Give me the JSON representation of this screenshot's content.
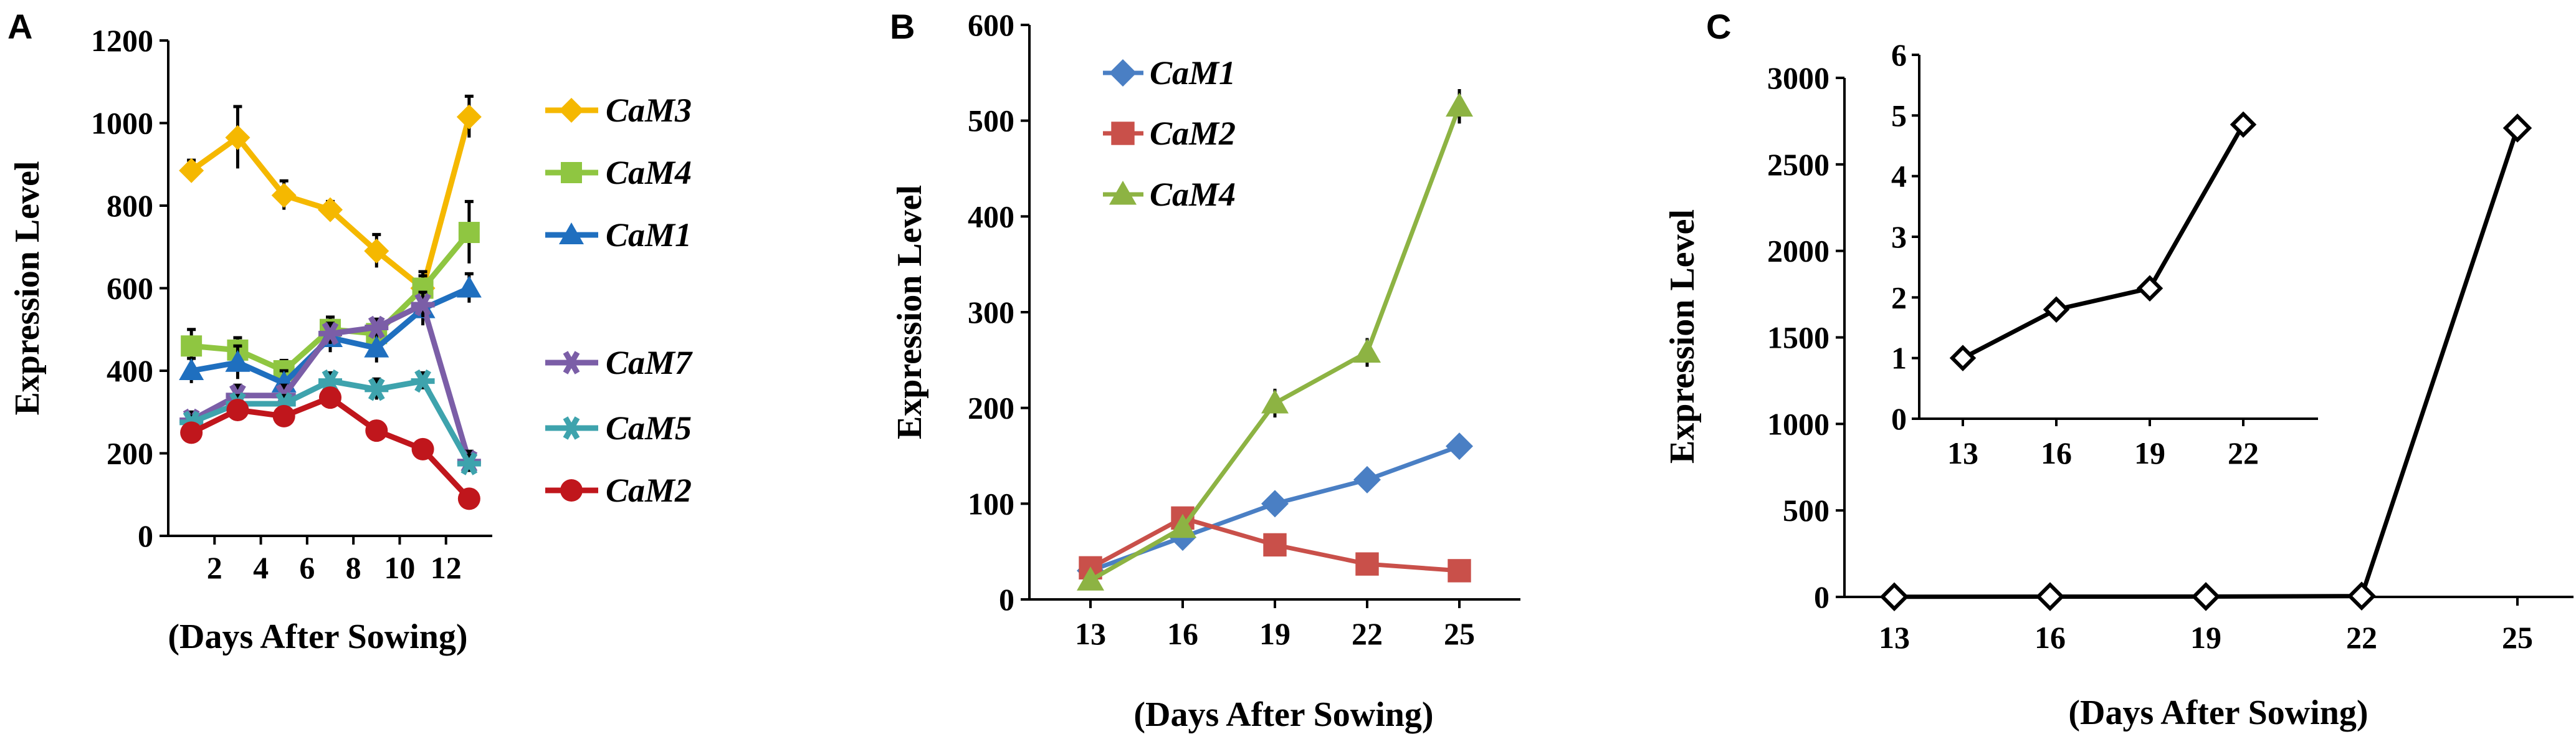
{
  "panels": {
    "A": {
      "letter": "A"
    },
    "B": {
      "letter": "B"
    },
    "C": {
      "letter": "C"
    }
  },
  "chart_data": [
    {
      "panel": "A",
      "type": "line",
      "xlabel": "(Days After Sowing)",
      "ylabel": "Expression Level",
      "xlim": [
        0,
        14
      ],
      "ylim": [
        0,
        1200
      ],
      "xticks": [
        2,
        4,
        6,
        8,
        10,
        12
      ],
      "yticks": [
        0,
        200,
        400,
        600,
        800,
        1000,
        1200
      ],
      "x": [
        1,
        3,
        5,
        7,
        9,
        11,
        13
      ],
      "legend_position": "right",
      "series": [
        {
          "name": "CaM3",
          "color": "#f5b800",
          "marker": "diamond",
          "values": [
            885,
            965,
            825,
            790,
            690,
            600,
            1015
          ],
          "errors": [
            25,
            75,
            35,
            20,
            40,
            30,
            50
          ]
        },
        {
          "name": "CaM4",
          "color": "#8fc641",
          "marker": "square",
          "values": [
            460,
            450,
            400,
            500,
            490,
            600,
            735
          ],
          "errors": [
            40,
            30,
            25,
            30,
            30,
            40,
            75
          ]
        },
        {
          "name": "CaM1",
          "color": "#1f6fbf",
          "marker": "triangle",
          "values": [
            400,
            420,
            370,
            480,
            455,
            550,
            600
          ],
          "errors": [
            30,
            40,
            30,
            35,
            35,
            40,
            35
          ]
        },
        {
          "name": "CaM7",
          "color": "#7b5ea7",
          "marker": "star",
          "values": [
            280,
            340,
            340,
            490,
            505,
            560,
            180
          ],
          "errors": [
            20,
            25,
            25,
            25,
            20,
            30,
            25
          ]
        },
        {
          "name": "CaM5",
          "color": "#3ea3ad",
          "marker": "star",
          "values": [
            275,
            320,
            320,
            375,
            355,
            375,
            175
          ],
          "errors": [
            15,
            20,
            20,
            20,
            25,
            20,
            20
          ]
        },
        {
          "name": "CaM2",
          "color": "#c0161c",
          "marker": "circle",
          "values": [
            250,
            305,
            290,
            335,
            255,
            210,
            90
          ],
          "errors": [
            20,
            20,
            20,
            20,
            20,
            15,
            15
          ]
        }
      ]
    },
    {
      "panel": "B",
      "type": "line",
      "xlabel": "(Days After Sowing)",
      "ylabel": "Expression Level",
      "categories": [
        "13",
        "16",
        "19",
        "22",
        "25"
      ],
      "ylim": [
        0,
        600
      ],
      "yticks": [
        0,
        100,
        200,
        300,
        400,
        500,
        600
      ],
      "legend_position": "top-left",
      "series": [
        {
          "name": "CaM1",
          "color": "#4a7fc4",
          "marker": "diamond",
          "values": [
            30,
            65,
            100,
            125,
            160
          ],
          "errors": [
            8,
            10,
            12,
            12,
            12
          ]
        },
        {
          "name": "CaM2",
          "color": "#c9504a",
          "marker": "square",
          "values": [
            33,
            85,
            57,
            37,
            30
          ],
          "errors": [
            8,
            10,
            12,
            10,
            10
          ]
        },
        {
          "name": "CaM4",
          "color": "#8db343",
          "marker": "triangle",
          "values": [
            20,
            75,
            205,
            258,
            515
          ],
          "errors": [
            8,
            10,
            15,
            15,
            18
          ]
        }
      ]
    },
    {
      "panel": "C",
      "type": "line",
      "xlabel": "(Days After Sowing)",
      "ylabel": "Expression Level",
      "categories": [
        "13",
        "16",
        "19",
        "22",
        "25"
      ],
      "ylim": [
        0,
        3000
      ],
      "yticks": [
        0,
        500,
        1000,
        1500,
        2000,
        2500,
        3000
      ],
      "series": [
        {
          "name": "",
          "color": "#000000",
          "marker": "open-diamond",
          "values": [
            1,
            1.8,
            2.1,
            4.8,
            2710
          ]
        }
      ],
      "inset": {
        "categories": [
          "13",
          "16",
          "19",
          "22"
        ],
        "ylim": [
          0,
          6
        ],
        "yticks": [
          0,
          1,
          2,
          3,
          4,
          5,
          6
        ],
        "values": [
          1,
          1.8,
          2.15,
          4.85
        ],
        "errors": [
          0.05,
          0.1,
          0.15,
          0.1
        ]
      }
    }
  ]
}
